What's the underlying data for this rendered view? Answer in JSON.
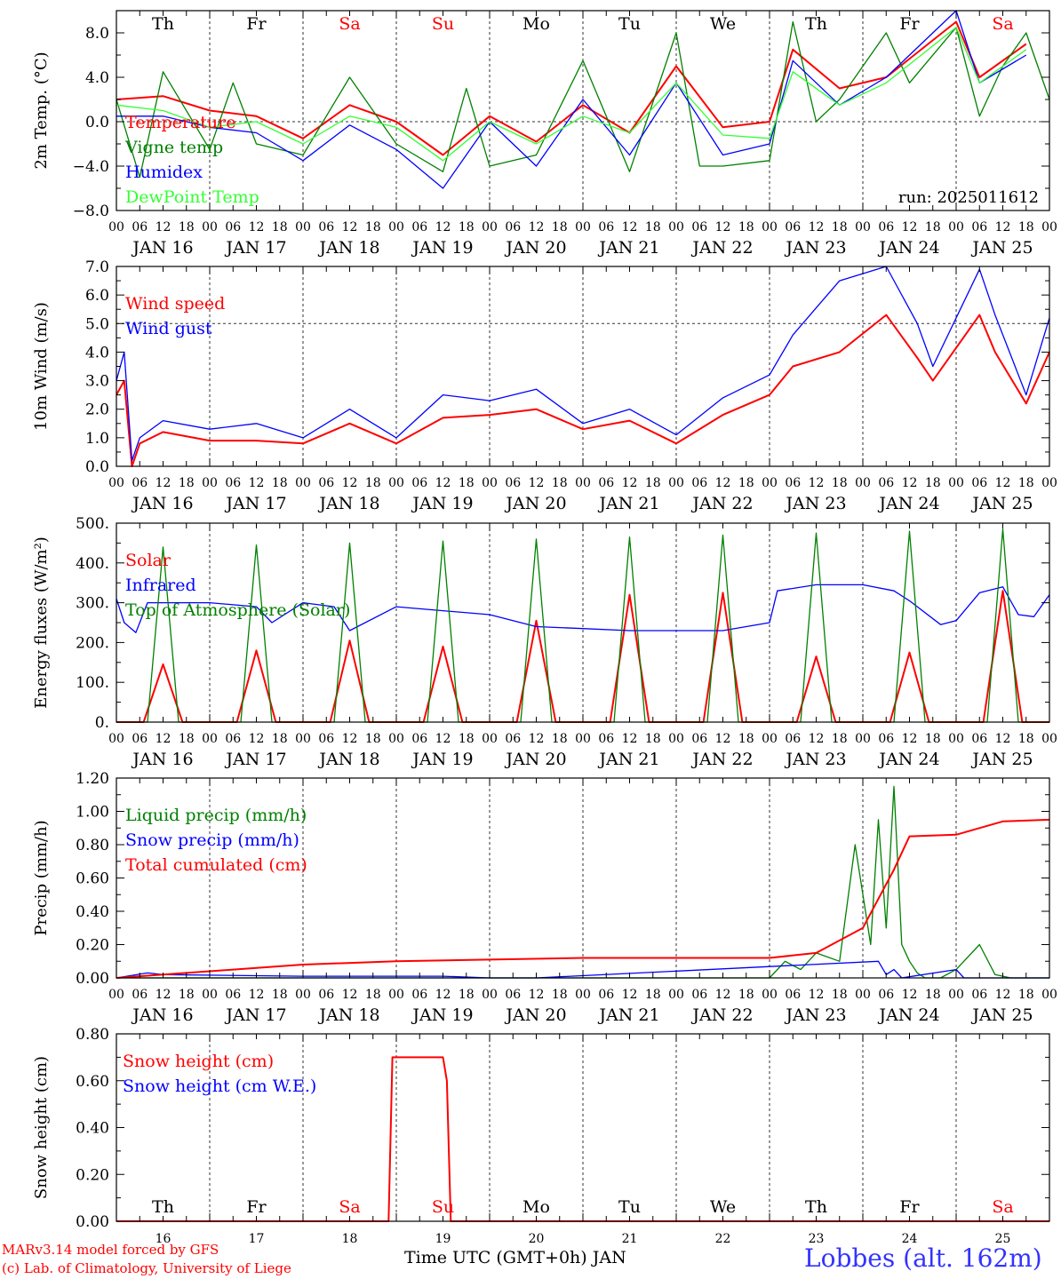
{
  "chart_data": [
    {
      "type": "line",
      "ylabel": "2m Temp. (°C)",
      "ylim": [
        -8,
        10
      ],
      "yticks": [
        -8,
        -4,
        0,
        4,
        8
      ],
      "ytick_labels": [
        "−8.0",
        "−4.0",
        "0.0",
        "4.0",
        "8.0"
      ],
      "yref": 0,
      "annotation": "run: 2025011612",
      "show_days": true,
      "series": [
        {
          "name": "Temperature",
          "color": "#ff0000",
          "x": [
            0,
            12,
            24,
            36,
            48,
            60,
            72,
            84,
            96,
            108,
            120,
            132,
            144,
            156,
            168,
            174,
            186,
            198,
            216,
            222,
            234
          ],
          "y": [
            2.0,
            2.3,
            1.0,
            0.5,
            -1.5,
            1.5,
            0.0,
            -3.0,
            0.5,
            -1.8,
            1.5,
            -1.0,
            5.0,
            -0.5,
            0,
            6.5,
            3.0,
            4.0,
            9.0,
            4.0,
            7.0
          ]
        },
        {
          "name": "Vigne temp",
          "color": "#008000",
          "x": [
            0,
            6,
            12,
            24,
            30,
            36,
            48,
            60,
            72,
            84,
            90,
            96,
            108,
            120,
            132,
            144,
            150,
            156,
            168,
            174,
            180,
            186,
            198,
            204,
            216,
            222,
            228,
            234,
            240
          ],
          "y": [
            2.0,
            -5.0,
            4.5,
            -2.5,
            3.5,
            -2.0,
            -3.0,
            4.0,
            -2.0,
            -4.5,
            3.0,
            -4.0,
            -3.0,
            5.5,
            -4.5,
            8.0,
            -4.0,
            -4.0,
            -3.5,
            9.0,
            0.0,
            2.0,
            8.0,
            3.5,
            8.5,
            0.5,
            5.0,
            8.0,
            2.0
          ],
          "area": false
        },
        {
          "name": "Humidex",
          "color": "#0000ff",
          "x": [
            0,
            12,
            24,
            36,
            48,
            60,
            72,
            84,
            96,
            108,
            120,
            132,
            144,
            156,
            168,
            174,
            186,
            198,
            216,
            222,
            234
          ],
          "y": [
            0.5,
            0.5,
            -0.5,
            -1.0,
            -3.5,
            -0.3,
            -2.5,
            -6.0,
            0,
            -4.0,
            2.0,
            -3.0,
            3.5,
            -3.0,
            -2.0,
            5.5,
            1.5,
            4.0,
            10.0,
            3.5,
            6.0
          ]
        },
        {
          "name": "DewPoint Temp",
          "color": "#33ff33",
          "x": [
            0,
            12,
            24,
            36,
            48,
            60,
            72,
            84,
            96,
            108,
            120,
            132,
            144,
            156,
            168,
            174,
            186,
            198,
            216,
            222,
            234
          ],
          "y": [
            1.5,
            1.0,
            -0.5,
            0.0,
            -2.0,
            0.5,
            -0.5,
            -3.5,
            0.0,
            -2.0,
            0.5,
            -1.0,
            3.5,
            -1.2,
            -1.5,
            4.5,
            1.5,
            3.5,
            8.5,
            3.5,
            6.5
          ]
        }
      ]
    },
    {
      "type": "line",
      "ylabel": "10m Wind (m/s)",
      "ylim": [
        0,
        7
      ],
      "yticks": [
        0,
        1,
        2,
        3,
        4,
        5,
        6,
        7
      ],
      "ytick_labels": [
        "0.0",
        "1.0",
        "2.0",
        "3.0",
        "4.0",
        "5.0",
        "6.0",
        "7.0"
      ],
      "yref": 5,
      "show_days": false,
      "series": [
        {
          "name": "Wind speed",
          "color": "#ff0000",
          "x": [
            0,
            2,
            4,
            6,
            12,
            24,
            36,
            48,
            60,
            72,
            84,
            96,
            108,
            120,
            132,
            144,
            156,
            168,
            174,
            186,
            198,
            206,
            210,
            222,
            226,
            234,
            240
          ],
          "y": [
            2.5,
            3.0,
            0.0,
            0.8,
            1.2,
            0.9,
            0.9,
            0.8,
            1.5,
            0.8,
            1.7,
            1.8,
            2.0,
            1.3,
            1.6,
            0.8,
            1.8,
            2.5,
            3.5,
            4.0,
            5.3,
            3.8,
            3.0,
            5.3,
            4.0,
            2.2,
            4.0
          ]
        },
        {
          "name": "Wind gust",
          "color": "#0000ff",
          "x": [
            0,
            2,
            4,
            6,
            12,
            24,
            36,
            48,
            60,
            72,
            84,
            96,
            108,
            120,
            132,
            144,
            156,
            168,
            174,
            186,
            198,
            206,
            210,
            222,
            226,
            234,
            240
          ],
          "y": [
            3.0,
            4.0,
            0.2,
            1.0,
            1.6,
            1.3,
            1.5,
            1.0,
            2.0,
            1.0,
            2.5,
            2.3,
            2.7,
            1.5,
            2.0,
            1.1,
            2.4,
            3.2,
            4.6,
            6.5,
            7.0,
            5.0,
            3.5,
            6.9,
            5.3,
            2.5,
            5.2
          ]
        }
      ]
    },
    {
      "type": "line",
      "ylabel": "Energy fluxes (W/m²)",
      "ylim": [
        0,
        500
      ],
      "yticks": [
        0,
        100,
        200,
        300,
        400,
        500
      ],
      "ytick_labels": [
        "0.",
        "100.",
        "200.",
        "300.",
        "400.",
        "500."
      ],
      "yref": null,
      "show_days": false,
      "series": [
        {
          "name": "Solar",
          "color": "#ff0000",
          "x": [
            0,
            7,
            12,
            17,
            24,
            31,
            36,
            41,
            48,
            55,
            60,
            65,
            72,
            79,
            84,
            89,
            96,
            103,
            108,
            113,
            120,
            127,
            132,
            137,
            144,
            151,
            156,
            161,
            168,
            175,
            180,
            185,
            192,
            199,
            204,
            209,
            216,
            223,
            228,
            233,
            240
          ],
          "y": [
            0,
            0,
            145,
            0,
            0,
            0,
            180,
            0,
            0,
            0,
            205,
            0,
            0,
            0,
            190,
            0,
            0,
            0,
            255,
            0,
            0,
            0,
            320,
            0,
            0,
            0,
            325,
            0,
            0,
            0,
            165,
            0,
            0,
            0,
            175,
            0,
            0,
            0,
            330,
            0,
            0
          ]
        },
        {
          "name": "Infrared",
          "color": "#0000ff",
          "x": [
            0,
            2,
            5,
            8,
            12,
            24,
            36,
            40,
            48,
            56,
            60,
            72,
            84,
            96,
            108,
            120,
            132,
            144,
            156,
            168,
            170,
            180,
            192,
            200,
            204,
            212,
            216,
            222,
            228,
            232,
            236,
            240
          ],
          "y": [
            310,
            250,
            225,
            300,
            300,
            300,
            290,
            250,
            300,
            290,
            230,
            290,
            280,
            270,
            240,
            235,
            230,
            230,
            230,
            250,
            330,
            345,
            345,
            330,
            305,
            245,
            255,
            325,
            340,
            270,
            265,
            320
          ]
        },
        {
          "name": "Top of Atmosphere (Solar)",
          "color": "#008000",
          "x": [
            0,
            8,
            12,
            16,
            24,
            32,
            36,
            40,
            48,
            56,
            60,
            64,
            72,
            80,
            84,
            88,
            96,
            104,
            108,
            112,
            120,
            128,
            132,
            136,
            144,
            152,
            156,
            160,
            168,
            176,
            180,
            184,
            192,
            200,
            204,
            208,
            216,
            224,
            228,
            232,
            240
          ],
          "y": [
            0,
            0,
            440,
            0,
            0,
            0,
            445,
            0,
            0,
            0,
            450,
            0,
            0,
            0,
            455,
            0,
            0,
            0,
            460,
            0,
            0,
            0,
            465,
            0,
            0,
            0,
            470,
            0,
            0,
            0,
            475,
            0,
            0,
            0,
            480,
            0,
            0,
            0,
            485,
            0,
            0
          ]
        }
      ]
    },
    {
      "type": "line",
      "ylabel": "Precip (mm/h)",
      "ylim": [
        0,
        1.2
      ],
      "yticks": [
        0,
        0.2,
        0.4,
        0.6,
        0.8,
        1.0,
        1.2
      ],
      "ytick_labels": [
        "0.00",
        "0.20",
        "0.40",
        "0.60",
        "0.80",
        "1.00",
        "1.20"
      ],
      "yref": null,
      "show_days": false,
      "series": [
        {
          "name": "Liquid precip (mm/h)",
          "color": "#008000",
          "x": [
            0,
            168,
            172,
            176,
            180,
            186,
            190,
            194,
            196,
            198,
            200,
            202,
            204,
            206,
            208,
            212,
            216,
            222,
            226,
            230,
            240
          ],
          "y": [
            0,
            0,
            0.1,
            0.05,
            0.15,
            0.1,
            0.8,
            0.2,
            0.95,
            0.3,
            1.15,
            0.2,
            0.1,
            0.03,
            0,
            0,
            0.05,
            0.2,
            0.02,
            0,
            0
          ]
        },
        {
          "name": "Snow precip (mm/h)",
          "color": "#0000ff",
          "x": [
            0,
            8,
            12,
            48,
            84,
            96,
            108,
            196,
            198,
            200,
            202,
            216,
            218,
            240
          ],
          "y": [
            0,
            0.03,
            0.02,
            0.01,
            0.01,
            0,
            0,
            0.1,
            0.02,
            0.05,
            0,
            0.05,
            0,
            0
          ]
        },
        {
          "name": "Total cumulated (cm)",
          "color": "#ff0000",
          "x": [
            0,
            12,
            24,
            48,
            72,
            96,
            120,
            168,
            180,
            192,
            200,
            204,
            216,
            228,
            240
          ],
          "y": [
            0,
            0.02,
            0.04,
            0.08,
            0.1,
            0.11,
            0.12,
            0.12,
            0.15,
            0.3,
            0.65,
            0.85,
            0.86,
            0.94,
            0.95
          ]
        }
      ]
    },
    {
      "type": "line",
      "ylabel": "Snow height (cm)",
      "ylim": [
        0,
        0.8
      ],
      "yticks": [
        0,
        0.2,
        0.4,
        0.6,
        0.8
      ],
      "ytick_labels": [
        "0.00",
        "0.20",
        "0.40",
        "0.60",
        "0.80"
      ],
      "yref": null,
      "show_days": true,
      "series": [
        {
          "name": "Snow height (cm)",
          "color": "#ff0000",
          "x": [
            0,
            70,
            71,
            80,
            84,
            85,
            86,
            240
          ],
          "y": [
            0,
            0,
            0.7,
            0.7,
            0.7,
            0.6,
            0,
            0
          ]
        },
        {
          "name": "Snow height (cm W.E.)",
          "color": "#0000ff",
          "x": [],
          "y": []
        }
      ]
    }
  ],
  "x_axis": {
    "xlim": [
      0,
      240
    ],
    "hour_labels": [
      "00",
      "06",
      "12",
      "18"
    ],
    "final_hour_label": "00",
    "date_labels": [
      "JAN 16",
      "JAN 17",
      "JAN 18",
      "JAN 19",
      "JAN 20",
      "JAN 21",
      "JAN 22",
      "JAN 23",
      "JAN 24",
      "JAN 25"
    ],
    "day_names": [
      "Th",
      "Fr",
      "Sa",
      "Su",
      "Mo",
      "Tu",
      "We",
      "Th",
      "Fr",
      "Sa"
    ],
    "day_colors": [
      "#000000",
      "#000000",
      "#ff0000",
      "#ff0000",
      "#000000",
      "#000000",
      "#000000",
      "#000000",
      "#000000",
      "#ff0000"
    ],
    "day_numbers": [
      "16",
      "17",
      "18",
      "19",
      "20",
      "21",
      "22",
      "23",
      "24",
      "25"
    ],
    "bottom_label": "Time UTC (GMT+0h) JAN"
  },
  "footer": {
    "model_line": "MARv3.14 model forced by GFS",
    "credit_line": "(c) Lab. of Climatology, University of Liege",
    "station": "Lobbes (alt. 162m)",
    "model_color": "#ff0000",
    "station_color": "#3333ff"
  }
}
